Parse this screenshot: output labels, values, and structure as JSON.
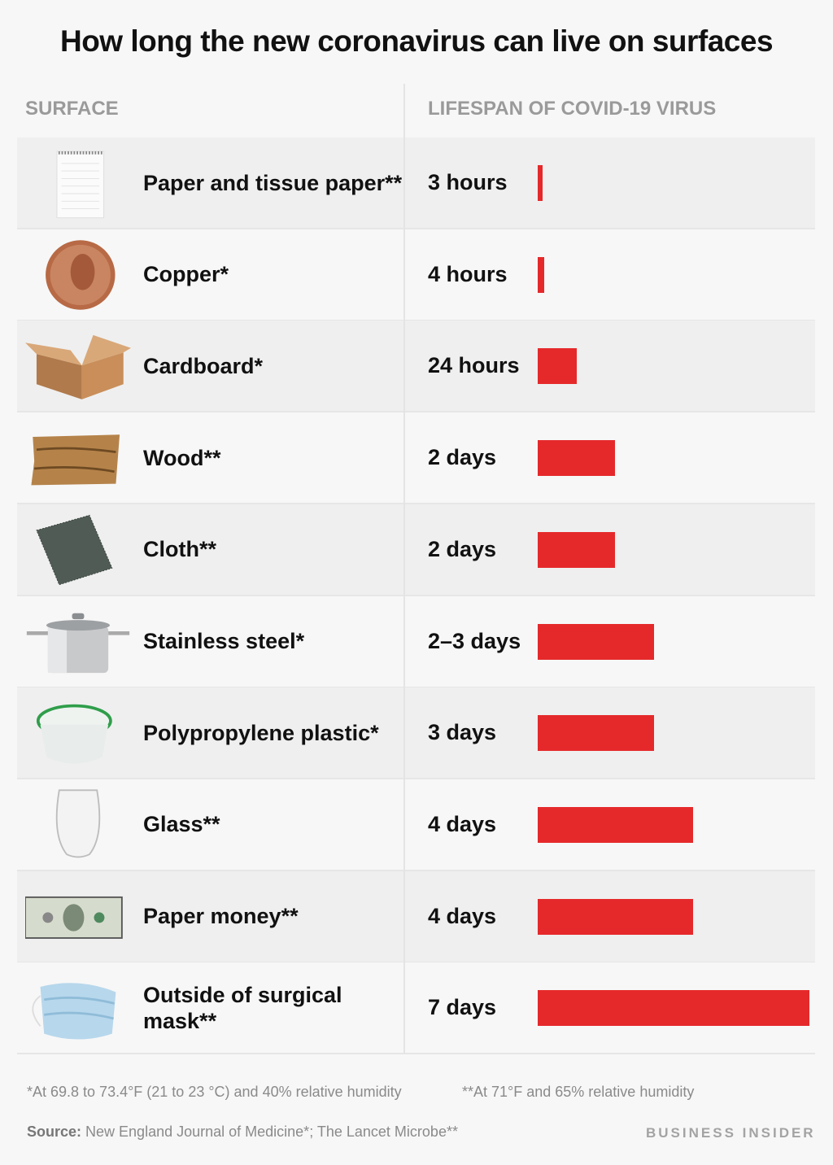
{
  "chart_data": {
    "type": "bar",
    "title": "How long the new coronavirus can live on surfaces",
    "column_headers": [
      "SURFACE",
      "LIFESPAN OF COVID-19 VIRUS"
    ],
    "bar_color": "#e5292b",
    "rows": [
      {
        "surface": "Paper and tissue paper**",
        "lifespan": "3 hours",
        "value_hours": 3,
        "icon": "notepad-icon"
      },
      {
        "surface": "Copper*",
        "lifespan": "4 hours",
        "value_hours": 4,
        "icon": "penny-icon"
      },
      {
        "surface": "Cardboard*",
        "lifespan": "24 hours",
        "value_hours": 24,
        "icon": "cardboard-box-icon"
      },
      {
        "surface": "Wood**",
        "lifespan": "2 days",
        "value_hours": 48,
        "icon": "wood-plank-icon"
      },
      {
        "surface": "Cloth**",
        "lifespan": "2 days",
        "value_hours": 48,
        "icon": "cloth-swatch-icon"
      },
      {
        "surface": "Stainless steel*",
        "lifespan": "2–3 days",
        "value_hours": 72,
        "icon": "steel-pot-icon"
      },
      {
        "surface": "Polypropylene plastic*",
        "lifespan": "3 days",
        "value_hours": 72,
        "icon": "plastic-container-icon"
      },
      {
        "surface": "Glass**",
        "lifespan": "4 days",
        "value_hours": 96,
        "icon": "glass-icon"
      },
      {
        "surface": "Paper money**",
        "lifespan": "4 days",
        "value_hours": 96,
        "icon": "dollar-bill-icon"
      },
      {
        "surface": "Outside of surgical mask**",
        "lifespan": "7 days",
        "value_hours": 168,
        "icon": "surgical-mask-icon"
      }
    ],
    "xlim_hours": [
      0,
      168
    ]
  },
  "footnotes": {
    "single": "*At 69.8 to 73.4°F (21 to 23 °C) and 40% relative humidity",
    "double": "**At 71°F and 65% relative humidity"
  },
  "source": {
    "label": "Source:",
    "text": " New England Journal of Medicine*; The Lancet Microbe**"
  },
  "brand": "BUSINESS INSIDER"
}
